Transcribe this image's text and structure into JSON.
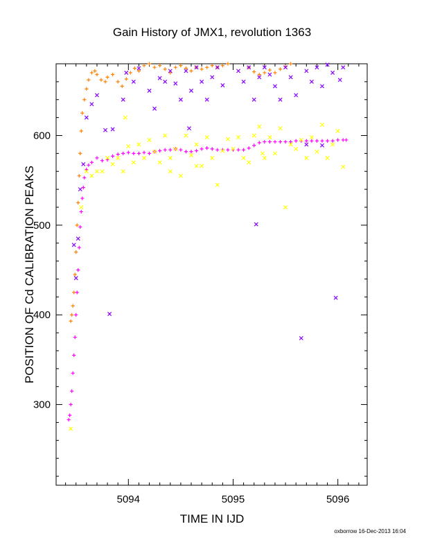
{
  "chart_data": {
    "type": "scatter",
    "title": "Gain History of JMX1, revolution 1363",
    "xlabel": "TIME IN IJD",
    "ylabel": "POSITION OF Cd CALIBRATION PEAKS",
    "xlim": [
      5093.31,
      5096.28
    ],
    "ylim": [
      210,
      680
    ],
    "x_ticks": [
      "5094",
      "5095",
      "5096"
    ],
    "y_ticks": [
      "300",
      "400",
      "500",
      "600"
    ],
    "grid": false,
    "legend": "none",
    "credit": "oxborrow 16-Dec-2013 16:04",
    "series": [
      {
        "color": "#ff8000",
        "marker": "+",
        "points": [
          [
            5093.45,
            393
          ],
          [
            5093.46,
            400
          ],
          [
            5093.47,
            410
          ],
          [
            5093.48,
            425
          ],
          [
            5093.49,
            445
          ],
          [
            5093.5,
            470
          ],
          [
            5093.51,
            500
          ],
          [
            5093.52,
            525
          ],
          [
            5093.53,
            555
          ],
          [
            5093.54,
            580
          ],
          [
            5093.55,
            605
          ],
          [
            5093.56,
            625
          ],
          [
            5093.58,
            640
          ],
          [
            5093.6,
            652
          ],
          [
            5093.62,
            662
          ],
          [
            5093.65,
            670
          ],
          [
            5093.68,
            672
          ],
          [
            5093.7,
            668
          ],
          [
            5093.74,
            662
          ],
          [
            5093.78,
            660
          ],
          [
            5093.8,
            665
          ],
          [
            5093.85,
            668
          ],
          [
            5093.9,
            660
          ],
          [
            5093.94,
            655
          ],
          [
            5093.98,
            663
          ],
          [
            5094.02,
            670
          ],
          [
            5094.06,
            675
          ],
          [
            5094.1,
            672
          ],
          [
            5094.15,
            678
          ],
          [
            5094.2,
            680
          ],
          [
            5094.25,
            676
          ],
          [
            5094.3,
            678
          ],
          [
            5094.35,
            674
          ],
          [
            5094.4,
            670
          ],
          [
            5094.45,
            676
          ],
          [
            5094.5,
            678
          ],
          [
            5094.55,
            675
          ],
          [
            5094.6,
            672
          ],
          [
            5094.65,
            676
          ],
          [
            5094.7,
            674
          ],
          [
            5094.75,
            676
          ],
          [
            5094.8,
            678
          ],
          [
            5094.85,
            676
          ],
          [
            5094.9,
            678
          ],
          [
            5094.95,
            680
          ],
          [
            5095.15,
            676
          ],
          [
            5095.2,
            671
          ],
          [
            5095.25,
            668
          ],
          [
            5095.3,
            670
          ],
          [
            5095.35,
            673
          ],
          [
            5095.4,
            670
          ],
          [
            5095.45,
            674
          ],
          [
            5095.5,
            677
          ],
          [
            5095.55,
            680
          ]
        ]
      },
      {
        "color": "#ff00ff",
        "marker": "+",
        "points": [
          [
            5093.43,
            283
          ],
          [
            5093.44,
            288
          ],
          [
            5093.45,
            300
          ],
          [
            5093.46,
            315
          ],
          [
            5093.47,
            335
          ],
          [
            5093.48,
            355
          ],
          [
            5093.49,
            375
          ],
          [
            5093.5,
            400
          ],
          [
            5093.51,
            425
          ],
          [
            5093.52,
            450
          ],
          [
            5093.53,
            475
          ],
          [
            5093.54,
            498
          ],
          [
            5093.55,
            515
          ],
          [
            5093.56,
            530
          ],
          [
            5093.57,
            542
          ],
          [
            5093.58,
            553
          ],
          [
            5093.6,
            562
          ],
          [
            5093.62,
            567
          ],
          [
            5093.65,
            570
          ],
          [
            5093.7,
            575
          ],
          [
            5093.75,
            572
          ],
          [
            5093.8,
            573
          ],
          [
            5093.85,
            577
          ],
          [
            5093.9,
            579
          ],
          [
            5093.95,
            580
          ],
          [
            5094.0,
            581
          ],
          [
            5094.05,
            580
          ],
          [
            5094.1,
            580
          ],
          [
            5094.15,
            581
          ],
          [
            5094.2,
            580
          ],
          [
            5094.25,
            582
          ],
          [
            5094.3,
            583
          ],
          [
            5094.35,
            584
          ],
          [
            5094.4,
            584
          ],
          [
            5094.45,
            585
          ],
          [
            5094.5,
            584
          ],
          [
            5094.55,
            582
          ],
          [
            5094.6,
            582
          ],
          [
            5094.65,
            583
          ],
          [
            5094.7,
            585
          ],
          [
            5094.75,
            586
          ],
          [
            5094.8,
            585
          ],
          [
            5094.85,
            584
          ],
          [
            5094.9,
            584
          ],
          [
            5094.95,
            584
          ],
          [
            5095.0,
            584
          ],
          [
            5095.05,
            584
          ],
          [
            5095.1,
            584
          ],
          [
            5095.15,
            586
          ],
          [
            5095.2,
            589
          ],
          [
            5095.25,
            592
          ],
          [
            5095.3,
            593
          ],
          [
            5095.35,
            593
          ],
          [
            5095.4,
            593
          ],
          [
            5095.45,
            593
          ],
          [
            5095.5,
            593
          ],
          [
            5095.55,
            593
          ],
          [
            5095.6,
            594
          ],
          [
            5095.65,
            594
          ],
          [
            5095.7,
            594
          ],
          [
            5095.75,
            594
          ],
          [
            5095.8,
            594
          ],
          [
            5095.85,
            594
          ],
          [
            5095.9,
            594
          ],
          [
            5095.95,
            594
          ],
          [
            5096.0,
            595
          ],
          [
            5096.05,
            595
          ],
          [
            5096.08,
            595
          ]
        ]
      },
      {
        "color": "#ffff00",
        "marker": "x",
        "points": [
          [
            5093.45,
            273
          ],
          [
            5093.55,
            520
          ],
          [
            5093.6,
            560
          ],
          [
            5093.65,
            555
          ],
          [
            5093.7,
            560
          ],
          [
            5093.75,
            560
          ],
          [
            5093.8,
            575
          ],
          [
            5093.85,
            568
          ],
          [
            5093.9,
            575
          ],
          [
            5093.95,
            560
          ],
          [
            5094.0,
            588
          ],
          [
            5094.05,
            570
          ],
          [
            5094.1,
            590
          ],
          [
            5094.15,
            575
          ],
          [
            5094.2,
            595
          ],
          [
            5094.25,
            582
          ],
          [
            5094.3,
            570
          ],
          [
            5094.35,
            600
          ],
          [
            5094.4,
            575
          ],
          [
            5094.45,
            585
          ],
          [
            5094.5,
            555
          ],
          [
            5094.55,
            600
          ],
          [
            5094.6,
            578
          ],
          [
            5094.65,
            590
          ],
          [
            5094.7,
            566
          ],
          [
            5094.75,
            598
          ],
          [
            5094.8,
            575
          ],
          [
            5094.85,
            545
          ],
          [
            5094.9,
            583
          ],
          [
            5094.95,
            596
          ],
          [
            5095.0,
            585
          ],
          [
            5095.05,
            598
          ],
          [
            5095.1,
            575
          ],
          [
            5095.15,
            570
          ],
          [
            5095.2,
            600
          ],
          [
            5095.25,
            610
          ],
          [
            5095.3,
            575
          ],
          [
            5095.35,
            598
          ],
          [
            5095.4,
            580
          ],
          [
            5095.45,
            608
          ],
          [
            5095.5,
            520
          ],
          [
            5095.55,
            590
          ],
          [
            5095.6,
            585
          ],
          [
            5095.65,
            595
          ],
          [
            5095.7,
            575
          ],
          [
            5095.75,
            598
          ],
          [
            5095.8,
            582
          ],
          [
            5095.85,
            612
          ],
          [
            5095.9,
            575
          ],
          [
            5095.95,
            590
          ],
          [
            5096.0,
            605
          ],
          [
            5096.05,
            565
          ],
          [
            5093.97,
            620
          ],
          [
            5094.4,
            560
          ],
          [
            5094.65,
            566
          ],
          [
            5095.28,
            580
          ]
        ]
      },
      {
        "color": "#8800ff",
        "marker": "x",
        "points": [
          [
            5093.48,
            478
          ],
          [
            5093.5,
            441
          ],
          [
            5093.52,
            485
          ],
          [
            5093.54,
            540
          ],
          [
            5093.57,
            568
          ],
          [
            5093.6,
            620
          ],
          [
            5093.65,
            635
          ],
          [
            5093.7,
            645
          ],
          [
            5093.78,
            606
          ],
          [
            5093.82,
            401
          ],
          [
            5093.85,
            607
          ],
          [
            5093.95,
            640
          ],
          [
            5093.98,
            670
          ],
          [
            5094.05,
            660
          ],
          [
            5094.1,
            675
          ],
          [
            5094.2,
            650
          ],
          [
            5094.25,
            630
          ],
          [
            5094.3,
            664
          ],
          [
            5094.35,
            660
          ],
          [
            5094.4,
            672
          ],
          [
            5094.45,
            658
          ],
          [
            5094.5,
            640
          ],
          [
            5094.55,
            672
          ],
          [
            5094.6,
            650
          ],
          [
            5094.65,
            676
          ],
          [
            5094.7,
            660
          ],
          [
            5094.75,
            640
          ],
          [
            5094.8,
            665
          ],
          [
            5094.85,
            676
          ],
          [
            5094.9,
            656
          ],
          [
            5095.05,
            672
          ],
          [
            5095.1,
            660
          ],
          [
            5095.15,
            676
          ],
          [
            5095.2,
            640
          ],
          [
            5095.22,
            501
          ],
          [
            5095.25,
            665
          ],
          [
            5095.3,
            676
          ],
          [
            5095.35,
            668
          ],
          [
            5095.4,
            655
          ],
          [
            5095.45,
            640
          ],
          [
            5095.5,
            676
          ],
          [
            5095.55,
            665
          ],
          [
            5095.6,
            645
          ],
          [
            5095.65,
            374
          ],
          [
            5095.7,
            672
          ],
          [
            5095.75,
            660
          ],
          [
            5095.8,
            676
          ],
          [
            5095.85,
            655
          ],
          [
            5095.9,
            679
          ],
          [
            5095.95,
            670
          ],
          [
            5095.98,
            419
          ],
          [
            5096.02,
            662
          ],
          [
            5096.05,
            676
          ],
          [
            5095.85,
            589
          ],
          [
            5094.58,
            608
          ],
          [
            5095.7,
            590
          ]
        ]
      }
    ]
  }
}
